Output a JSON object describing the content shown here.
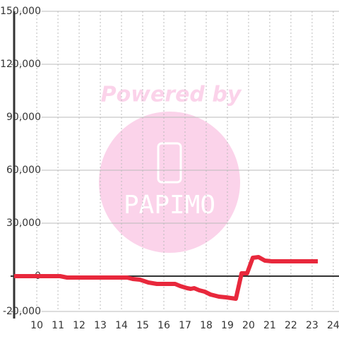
{
  "chart_data": {
    "type": "line",
    "x": [
      8.93,
      11.1,
      11.43,
      14.27,
      14.53,
      14.87,
      15.27,
      15.67,
      16.53,
      16.77,
      17.1,
      17.27,
      17.43,
      17.67,
      17.93,
      18.2,
      18.6,
      18.93,
      19.4,
      19.67,
      19.93,
      20.2,
      20.47,
      20.77,
      21.1,
      23.27
    ],
    "series": [
      {
        "color": "#e8283c",
        "values": [
          0,
          0,
          -800,
          -800,
          -1600,
          -2000,
          -3600,
          -4400,
          -4400,
          -5600,
          -6800,
          -7200,
          -6800,
          -8000,
          -8800,
          -10400,
          -11600,
          -12000,
          -12800,
          1600,
          1600,
          10400,
          10800,
          8800,
          8400,
          8400
        ]
      }
    ],
    "xlim": [
      8.93,
      24.27
    ],
    "xticks": [
      10,
      11,
      12,
      13,
      14,
      15,
      16,
      17,
      18,
      19,
      20,
      21,
      22,
      23,
      24
    ],
    "ylim": [
      -20000,
      150000
    ],
    "yticks": [
      {
        "value": -20000,
        "label": "-20,000"
      },
      0,
      {
        "value": 30000,
        "label": "30,000"
      },
      {
        "value": 60000,
        "label": "60,000"
      },
      {
        "value": 90000,
        "label": "90,000"
      },
      {
        "value": 120000,
        "label": "120,000"
      },
      {
        "value": 150000,
        "label": "150,000"
      }
    ],
    "grid": true,
    "watermark": {
      "text": "Powered by",
      "logo": "PAPIMO"
    }
  }
}
